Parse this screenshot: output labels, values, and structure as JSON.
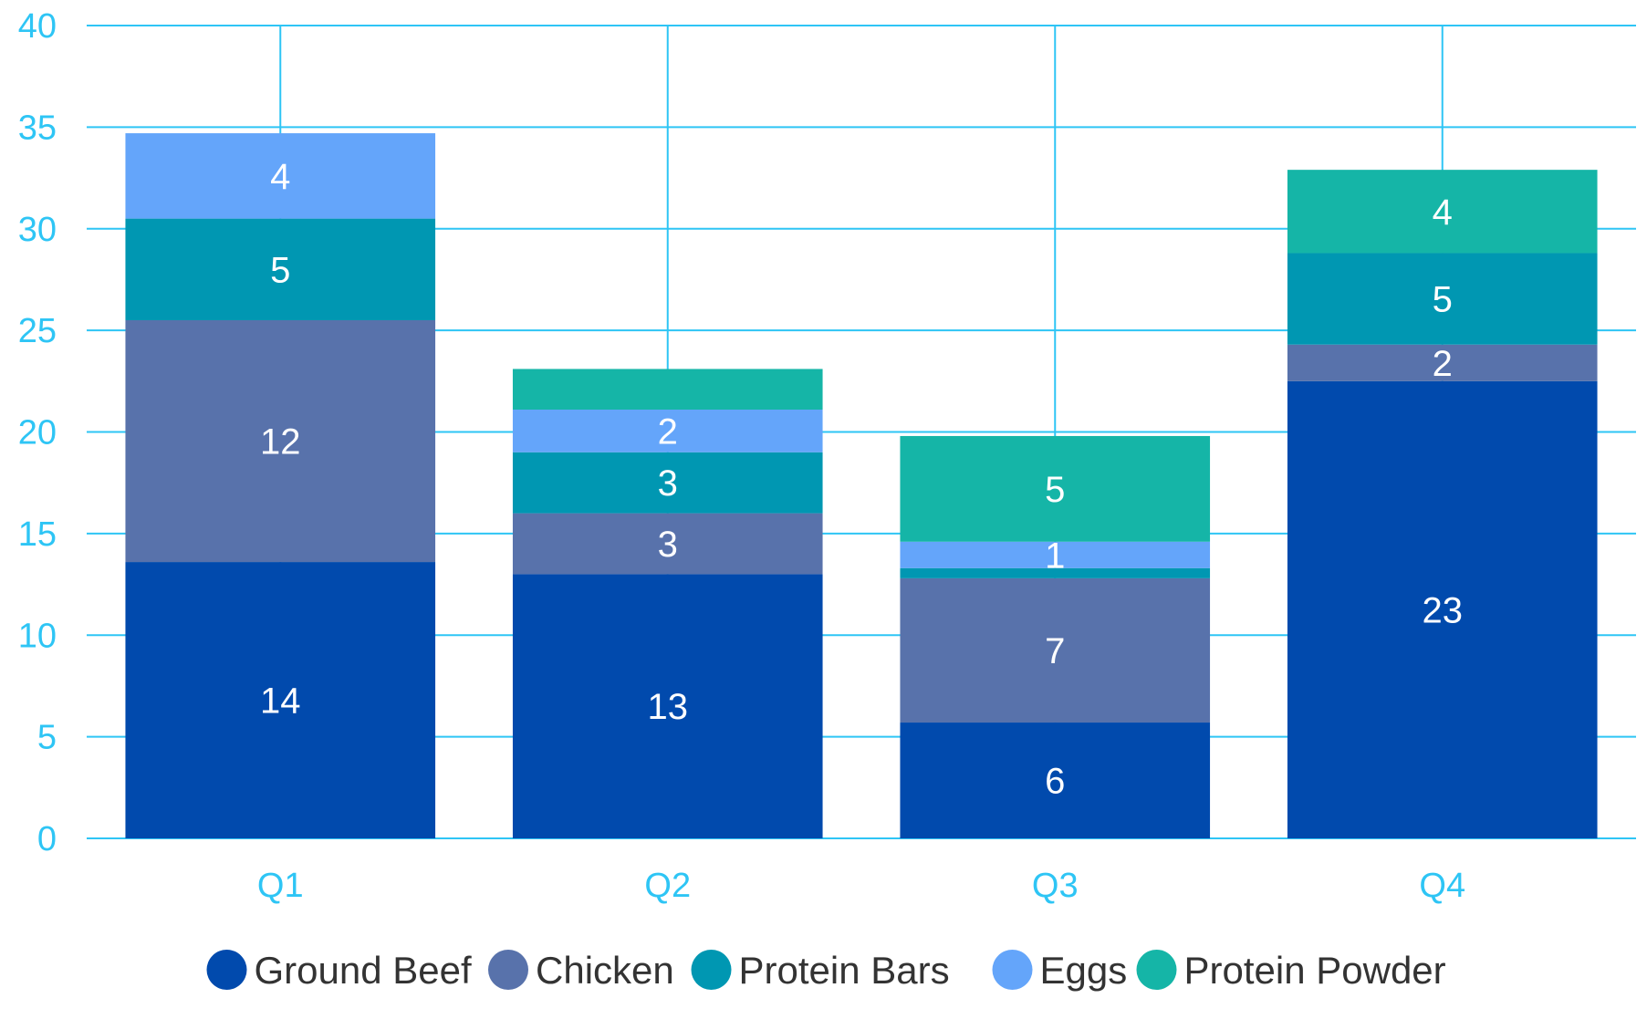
{
  "chart_data": {
    "type": "bar",
    "stacked": true,
    "categories": [
      "Q1",
      "Q2",
      "Q3",
      "Q4"
    ],
    "series": [
      {
        "name": "Ground Beef",
        "color": "#014aad",
        "values": [
          13.6,
          13.0,
          5.7,
          22.5
        ],
        "labels": [
          "14",
          "13",
          "6",
          "23"
        ]
      },
      {
        "name": "Chicken",
        "color": "#5872ab",
        "values": [
          11.9,
          3.0,
          7.1,
          1.8
        ],
        "labels": [
          "12",
          "3",
          "7",
          "2"
        ]
      },
      {
        "name": "Protein Bars",
        "color": "#0097b2",
        "values": [
          5.0,
          3.0,
          0.5,
          4.5
        ],
        "labels": [
          "5",
          "3",
          null,
          "5"
        ]
      },
      {
        "name": "Eggs",
        "color": "#64a5fa",
        "values": [
          4.2,
          2.1,
          1.3,
          0
        ],
        "labels": [
          "4",
          "2",
          "1",
          null
        ]
      },
      {
        "name": "Protein Powder",
        "color": "#15b5a7",
        "values": [
          0,
          2.0,
          5.2,
          4.1
        ],
        "labels": [
          null,
          null,
          "5",
          "4"
        ]
      }
    ],
    "yticks": [
      "0",
      "5",
      "10",
      "15",
      "20",
      "25",
      "30",
      "35",
      "40"
    ],
    "ylim": [
      0,
      40
    ],
    "grid": true,
    "gridColor": "#2ec5f5",
    "legend": "bottom",
    "title": "",
    "xlabel": "",
    "ylabel": ""
  }
}
